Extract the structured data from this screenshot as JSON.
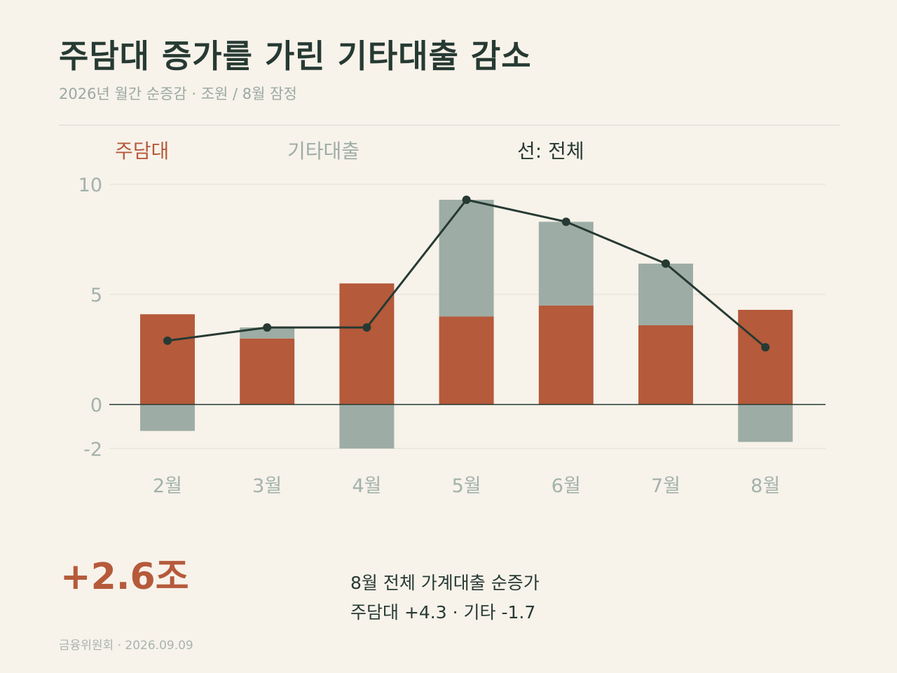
{
  "title": "주담대 증가를 가린 기타대출 감소",
  "subtitle": "2026년 월간 순증감 · 조원 / 8월 잠정",
  "legend": {
    "mortgage": "주담대",
    "other": "기타대출",
    "line": "선: 전체"
  },
  "colors": {
    "mortgage": "#b55a3b",
    "other": "#9dada5",
    "line": "#263a33",
    "background": "#f7f2ea",
    "axis_text": "#a2b2aa"
  },
  "chart_data": {
    "type": "bar",
    "stacked": true,
    "categories": [
      "2월",
      "3월",
      "4월",
      "5월",
      "6월",
      "7월",
      "8월"
    ],
    "series": [
      {
        "name": "주담대",
        "values": [
          4.1,
          3.0,
          5.5,
          4.0,
          4.5,
          3.6,
          4.3
        ]
      },
      {
        "name": "기타대출",
        "values": [
          -1.2,
          0.5,
          -2.0,
          5.3,
          3.8,
          2.8,
          -1.7
        ]
      }
    ],
    "line_series": {
      "name": "전체",
      "values": [
        2.9,
        3.5,
        3.5,
        9.3,
        8.3,
        6.4,
        2.6
      ]
    },
    "yticks": [
      10,
      5,
      0,
      -2
    ],
    "ylim": [
      -2,
      10
    ],
    "grid": true
  },
  "summary": {
    "value": "+2.6조",
    "line1": "8월 전체 가계대출 순증가",
    "line2": "주담대  +4.3 · 기타 -1.7"
  },
  "source": "금융위원회 · 2026.09.09"
}
